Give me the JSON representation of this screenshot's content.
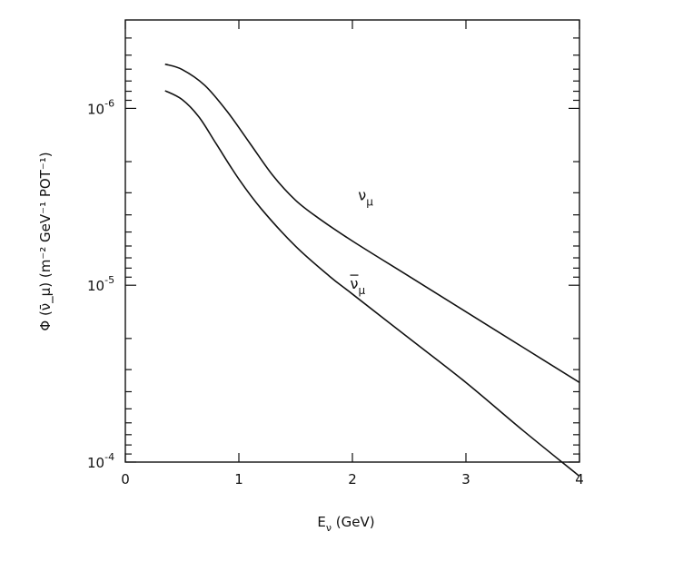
{
  "chart_data": {
    "type": "line",
    "xlabel": "E_ν (GeV)",
    "ylabel": "Φ (ν̄_μ) (m⁻² GeV⁻¹ POT⁻¹)",
    "xlim": [
      0,
      4
    ],
    "ylim": [
      -4,
      -6.5
    ],
    "y_scale": "log",
    "x_ticks": [
      {
        "value": 0,
        "label": "0"
      },
      {
        "value": 1,
        "label": "1"
      },
      {
        "value": 2,
        "label": "2"
      },
      {
        "value": 3,
        "label": "3"
      },
      {
        "value": 4,
        "label": "4"
      }
    ],
    "y_ticks": [
      {
        "value": -4,
        "label_base": "10",
        "label_exp": "-4"
      },
      {
        "value": -5,
        "label_base": "10",
        "label_exp": "-5"
      },
      {
        "value": -6,
        "label_base": "10",
        "label_exp": "-6"
      }
    ],
    "grid": false,
    "series": [
      {
        "name": "ν_μ",
        "label_base": "ν",
        "label_sub": "μ",
        "bar": false,
        "label_at": [
          2.05,
          -5.48
        ],
        "x": [
          0.35,
          0.5,
          0.7,
          0.9,
          1.1,
          1.3,
          1.5,
          1.7,
          2.0,
          2.5,
          3.0,
          3.5,
          4.0
        ],
        "y": [
          -6.25,
          -6.22,
          -6.13,
          -5.98,
          -5.8,
          -5.62,
          -5.48,
          -5.38,
          -5.25,
          -5.05,
          -4.85,
          -4.65,
          -4.45
        ]
      },
      {
        "name": "ν̄_μ",
        "label_base": "ν",
        "label_sub": "μ",
        "bar": true,
        "label_at": [
          1.98,
          -4.98
        ],
        "x": [
          0.35,
          0.5,
          0.65,
          0.8,
          1.0,
          1.2,
          1.5,
          1.8,
          2.0,
          2.5,
          3.0,
          3.5,
          4.0
        ],
        "y": [
          -6.1,
          -6.05,
          -5.95,
          -5.8,
          -5.6,
          -5.43,
          -5.22,
          -5.05,
          -4.95,
          -4.7,
          -4.45,
          -4.18,
          -3.92
        ]
      }
    ]
  }
}
